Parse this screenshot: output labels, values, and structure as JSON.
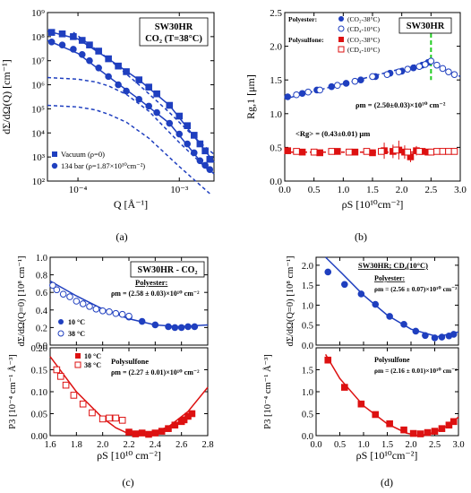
{
  "chart_data": [
    {
      "id": "a",
      "panel_label": "(a)",
      "type": "scatter",
      "title_box": [
        "SW30HR",
        "CO₂ (T=38°C)"
      ],
      "xlabel": "Q [Å⁻¹]",
      "ylabel": "dΣ/dΩ(Q) [cm⁻¹]",
      "xscale": "log",
      "yscale": "log",
      "xlim": [
        5e-05,
        0.0022
      ],
      "ylim": [
        100,
        1000000000
      ],
      "xticks": [
        {
          "v": 0.0001,
          "label": "10⁻⁴"
        },
        {
          "v": 0.001,
          "label": "10⁻³"
        }
      ],
      "yticks": [
        {
          "v": 100,
          "label": "10²"
        },
        {
          "v": 1000,
          "label": "10³"
        },
        {
          "v": 10000,
          "label": "10⁴"
        },
        {
          "v": 100000,
          "label": "10⁵"
        },
        {
          "v": 1000000,
          "label": "10⁶"
        },
        {
          "v": 10000000,
          "label": "10⁷"
        },
        {
          "v": 100000000,
          "label": "10⁸"
        },
        {
          "v": 1000000000,
          "label": "10⁹"
        }
      ],
      "legend": [
        {
          "marker": "square",
          "label": "Vacuum (ρ=0)"
        },
        {
          "marker": "circle",
          "label": "134 bar (ρ=1.87×10¹⁰cm⁻²)"
        }
      ],
      "series": [
        {
          "name": "Vacuum (ρ=0)",
          "marker": "square",
          "color": "#1f3fbf",
          "x": [
            5.5e-05,
            7e-05,
            9e-05,
            0.00011,
            0.00013,
            0.00016,
            0.0002,
            0.00025,
            0.0003,
            0.0004,
            0.0005,
            0.0006,
            0.0008,
            0.001,
            0.0012,
            0.0014,
            0.0016,
            0.0018,
            0.002
          ],
          "y": [
            150000000,
            130000000,
            100000000,
            70000000,
            45000000,
            25000000,
            12000000,
            6000000,
            3500000,
            1600000,
            800000,
            420000,
            140000,
            50000,
            20000,
            8000,
            3500,
            1800,
            800
          ]
        },
        {
          "name": "134 bar (ρ=1.87×10¹⁰cm⁻²)",
          "marker": "circle",
          "color": "#1f3fbf",
          "x": [
            5.5e-05,
            7e-05,
            9e-05,
            0.00011,
            0.00013,
            0.00016,
            0.0002,
            0.00025,
            0.0003,
            0.0004,
            0.0005,
            0.0006,
            0.0008,
            0.001,
            0.0012,
            0.0014,
            0.0016,
            0.0018,
            0.002
          ],
          "y": [
            60000000,
            45000000,
            30000000,
            18000000,
            10000000,
            5000000,
            2200000,
            1000000,
            550000,
            250000,
            130000,
            70000,
            25000,
            9000,
            3500,
            1500,
            700,
            450,
            300
          ]
        }
      ],
      "fits": [
        {
          "style": "solid",
          "x": [
            5e-05,
            0.0001,
            0.0002,
            0.0004,
            0.0008,
            0.0016,
            0.0022
          ],
          "y": [
            170000000,
            80000000,
            12000000,
            1600000,
            140000,
            3500,
            600
          ]
        },
        {
          "style": "solid",
          "x": [
            5e-05,
            0.0001,
            0.0002,
            0.0004,
            0.0008,
            0.0016,
            0.0022
          ],
          "y": [
            70000000,
            20000000,
            2200000,
            250000,
            25000,
            700,
            200
          ]
        },
        {
          "style": "dashed",
          "x": [
            5e-05,
            0.0001,
            0.00015,
            0.0002,
            0.0003,
            0.0005,
            0.001,
            0.002
          ],
          "y": [
            2000000,
            1700000,
            1300000,
            900000,
            400000,
            80000,
            4000,
            250
          ]
        },
        {
          "style": "dashed",
          "x": [
            5e-05,
            0.0001,
            0.00015,
            0.0002,
            0.0003,
            0.0005,
            0.001,
            0.002
          ],
          "y": [
            140000,
            120000,
            90000,
            60000,
            28000,
            6000,
            400,
            30
          ]
        },
        {
          "style": "dashed",
          "x": [
            9e-05,
            0.0002,
            0.0004,
            0.0008,
            0.0016,
            0.0022
          ],
          "y": [
            150000000,
            12000000,
            1000000,
            70000,
            4000,
            1300
          ]
        }
      ]
    },
    {
      "id": "b",
      "panel_label": "(b)",
      "type": "scatter",
      "title_box": [
        "SW30HR"
      ],
      "xlabel": "ρS [10¹⁰cm⁻²]",
      "ylabel": "Rg,1 [μm]",
      "xlim": [
        0,
        3.0
      ],
      "ylim": [
        0,
        2.5
      ],
      "xticks": [
        0.0,
        0.5,
        1.0,
        1.5,
        2.0,
        2.5,
        3.0
      ],
      "yticks": [
        0.0,
        0.5,
        1.0,
        1.5,
        2.0,
        2.5
      ],
      "legend_groups": [
        {
          "title": "Polyester:",
          "items": [
            {
              "marker": "circle-filled",
              "label": "(CO₂-38°C)"
            },
            {
              "marker": "circle-open",
              "label": "(CD₄-10°C)"
            }
          ]
        },
        {
          "title": "Polysulfone:",
          "items": [
            {
              "marker": "square-filled",
              "label": "(CO₂-38°C)"
            },
            {
              "marker": "square-open",
              "label": "(CD₄-10°C)"
            }
          ]
        }
      ],
      "annotations": [
        "ρm = (2.50±0.03)×10¹⁰ cm⁻²",
        "<Rg> = (0.43±0.01) μm"
      ],
      "vline_x": 2.5,
      "series": [
        {
          "name": "Polyester (CO₂-38°C)",
          "marker": "circle-filled",
          "color": "#1f3fbf",
          "x": [
            0.05,
            0.3,
            0.55,
            0.8,
            1.05,
            1.3,
            1.55,
            1.8,
            2.0,
            2.2,
            2.35,
            2.45
          ],
          "y": [
            1.25,
            1.3,
            1.35,
            1.4,
            1.45,
            1.5,
            1.55,
            1.6,
            1.63,
            1.68,
            1.72,
            1.76
          ]
        },
        {
          "name": "Polyester (CD₄-10°C)",
          "marker": "circle-open",
          "color": "#1f3fbf",
          "x": [
            0.2,
            0.4,
            0.6,
            0.9,
            1.2,
            1.5,
            1.75,
            1.95,
            2.1,
            2.3,
            2.4,
            2.5,
            2.6,
            2.7,
            2.8,
            2.9
          ],
          "y": [
            1.28,
            1.32,
            1.35,
            1.42,
            1.48,
            1.55,
            1.58,
            1.62,
            1.66,
            1.7,
            1.73,
            1.78,
            1.72,
            1.67,
            1.62,
            1.58
          ]
        },
        {
          "name": "Polysulfone (CO₂-38°C)",
          "marker": "square-filled",
          "color": "#dd1111",
          "x": [
            0.05,
            0.3,
            0.6,
            0.9,
            1.2,
            1.5,
            1.7,
            1.85,
            1.95,
            2.05,
            2.15,
            2.25,
            2.35,
            2.45
          ],
          "y": [
            0.45,
            0.43,
            0.42,
            0.44,
            0.43,
            0.42,
            0.45,
            0.44,
            0.46,
            0.43,
            0.36,
            0.45,
            0.44,
            0.43
          ]
        },
        {
          "name": "Polysulfone (CD₄-10°C)",
          "marker": "square-open",
          "color": "#dd1111",
          "x": [
            0.2,
            0.5,
            0.8,
            1.1,
            1.4,
            1.65,
            1.9,
            2.1,
            2.3,
            2.5,
            2.6,
            2.7,
            2.8,
            2.9
          ],
          "y": [
            0.44,
            0.43,
            0.44,
            0.43,
            0.44,
            0.44,
            0.46,
            0.43,
            0.44,
            0.43,
            0.44,
            0.44,
            0.44,
            0.44
          ]
        }
      ],
      "errorbars": [
        {
          "x": 1.7,
          "y": 0.45,
          "err": 0.12
        },
        {
          "x": 1.85,
          "y": 0.44,
          "err": 0.1
        },
        {
          "x": 1.95,
          "y": 0.46,
          "err": 0.14
        },
        {
          "x": 2.05,
          "y": 0.43,
          "err": 0.1
        },
        {
          "x": 2.15,
          "y": 0.36,
          "err": 0.08
        },
        {
          "x": 2.25,
          "y": 0.45,
          "err": 0.07
        }
      ],
      "fits": [
        {
          "style": "dashed",
          "color": "#1f3fbf",
          "x": [
            0.0,
            2.5
          ],
          "y": [
            1.22,
            1.78
          ]
        },
        {
          "style": "dashed",
          "color": "#1f3fbf",
          "x": [
            2.5,
            3.0
          ],
          "y": [
            1.78,
            1.55
          ]
        },
        {
          "style": "dashed",
          "color": "#dd1111",
          "x": [
            0.0,
            3.0
          ],
          "y": [
            0.43,
            0.43
          ]
        }
      ]
    },
    {
      "id": "c",
      "panel_label": "(c)",
      "type": "scatter",
      "title_box": [
        "SW30HR - CO₂"
      ],
      "xlabel": "ρS [10¹⁰ cm⁻²]",
      "xlim": [
        1.6,
        2.8
      ],
      "xticks": [
        1.6,
        1.8,
        2.0,
        2.2,
        2.4,
        2.6,
        2.8
      ],
      "top": {
        "ylabel": "dΣ/dΩ(Q=0) [10⁸ cm⁻¹]",
        "ylim": [
          0,
          1.0
        ],
        "yticks": [
          0.0,
          0.2,
          0.4,
          0.6,
          0.8,
          1.0
        ],
        "texts": [
          "Polyester:",
          "ρm = (2.58 ± 0.03)×10¹⁰ cm⁻²"
        ],
        "legend": [
          {
            "marker": "circle-filled",
            "label": "10 °C"
          },
          {
            "marker": "circle-open",
            "label": "38 °C"
          }
        ],
        "series": [
          {
            "name": "10 °C",
            "marker": "circle-filled",
            "color": "#1f3fbf",
            "x": [
              2.2,
              2.3,
              2.4,
              2.5,
              2.55,
              2.6,
              2.65,
              2.7
            ],
            "y": [
              0.32,
              0.27,
              0.23,
              0.21,
              0.2,
              0.2,
              0.21,
              0.21
            ]
          },
          {
            "name": "38 °C",
            "marker": "circle-open",
            "color": "#1f3fbf",
            "x": [
              1.62,
              1.65,
              1.7,
              1.75,
              1.8,
              1.85,
              1.9,
              1.95,
              2.0,
              2.05,
              2.1,
              2.15,
              2.2
            ],
            "y": [
              0.68,
              0.63,
              0.58,
              0.55,
              0.5,
              0.47,
              0.44,
              0.41,
              0.39,
              0.38,
              0.36,
              0.35,
              0.33
            ]
          }
        ],
        "fit": {
          "color": "#1f3fbf",
          "x": [
            1.6,
            1.8,
            2.0,
            2.2,
            2.4,
            2.58,
            2.8
          ],
          "y": [
            0.73,
            0.56,
            0.41,
            0.3,
            0.23,
            0.21,
            0.23
          ]
        }
      },
      "bottom": {
        "ylabel": "P3 [10⁻⁴ cm⁻¹ Å⁻³]",
        "ylim": [
          0,
          0.2
        ],
        "yticks": [
          0.0,
          0.05,
          0.1,
          0.15,
          0.2
        ],
        "texts": [
          "Polysulfone",
          "ρm = (2.27 ± 0.01)×10¹⁰ cm⁻²"
        ],
        "legend": [
          {
            "marker": "square-filled",
            "label": "10 °C"
          },
          {
            "marker": "square-open",
            "label": "38 °C"
          }
        ],
        "series": [
          {
            "name": "10 °C",
            "marker": "square-filled",
            "color": "#dd1111",
            "x": [
              2.2,
              2.25,
              2.3,
              2.35,
              2.4,
              2.45,
              2.5,
              2.55,
              2.6,
              2.62,
              2.65,
              2.68
            ],
            "y": [
              0.008,
              0.004,
              0.006,
              0.003,
              0.006,
              0.01,
              0.016,
              0.024,
              0.032,
              0.036,
              0.044,
              0.05
            ]
          },
          {
            "name": "38 °C",
            "marker": "square-open",
            "color": "#dd1111",
            "x": [
              1.65,
              1.68,
              1.72,
              1.78,
              1.85,
              1.92,
              2.0,
              2.05,
              2.1,
              2.15
            ],
            "y": [
              0.15,
              0.135,
              0.115,
              0.092,
              0.072,
              0.052,
              0.038,
              0.04,
              0.04,
              0.035
            ]
          }
        ],
        "fit": {
          "color": "#dd1111",
          "x": [
            1.6,
            1.8,
            2.0,
            2.1,
            2.2,
            2.27,
            2.35,
            2.5,
            2.65,
            2.8
          ],
          "y": [
            0.18,
            0.1,
            0.04,
            0.018,
            0.004,
            0.0,
            0.004,
            0.02,
            0.055,
            0.11
          ]
        }
      }
    },
    {
      "id": "d",
      "panel_label": "(d)",
      "type": "scatter",
      "title_box": [
        "SW30HR; CD₄(10°C)"
      ],
      "xlabel": "ρS [10¹⁰cm⁻²]",
      "xlim": [
        0,
        3.0
      ],
      "xticks": [
        0.0,
        0.5,
        1.0,
        1.5,
        2.0,
        2.5,
        3.0
      ],
      "top": {
        "ylabel": "dΣ/dΩ(Q=0) [10⁸ cm⁻¹]",
        "ylim": [
          0,
          2.2
        ],
        "yticks": [
          0.0,
          0.5,
          1.0,
          1.5,
          2.0
        ],
        "texts": [
          "Polyester:",
          "ρm = (2.56 ± 0.07)×10¹⁰ cm⁻²"
        ],
        "series": [
          {
            "name": "Polyester",
            "marker": "circle-filled",
            "color": "#1f3fbf",
            "x": [
              0.25,
              0.6,
              0.95,
              1.25,
              1.55,
              1.85,
              2.1,
              2.3,
              2.5,
              2.65,
              2.8,
              2.9
            ],
            "y": [
              1.83,
              1.52,
              1.28,
              1.02,
              0.72,
              0.52,
              0.35,
              0.24,
              0.18,
              0.2,
              0.23,
              0.27
            ]
          }
        ],
        "fit": {
          "color": "#1f3fbf",
          "x": [
            0.2,
            0.5,
            1.0,
            1.5,
            2.0,
            2.56,
            3.0
          ],
          "y": [
            2.25,
            1.85,
            1.25,
            0.75,
            0.4,
            0.21,
            0.33
          ]
        }
      },
      "bottom": {
        "ylabel": "P3 [10⁻⁴ cm⁻¹ Å⁻³]",
        "ylim": [
          0,
          2.0
        ],
        "yticks": [
          0.0,
          0.5,
          1.0,
          1.5
        ],
        "texts": [
          "Polysulfone",
          "ρm = (2.16 ± 0.01)×10¹⁰ cm⁻²"
        ],
        "series": [
          {
            "name": "Polysulfone",
            "marker": "square-filled",
            "color": "#dd1111",
            "x": [
              0.25,
              0.6,
              0.95,
              1.25,
              1.55,
              1.85,
              2.05,
              2.2,
              2.35,
              2.5,
              2.65,
              2.8,
              2.9
            ],
            "y": [
              1.72,
              1.1,
              0.72,
              0.48,
              0.27,
              0.13,
              0.05,
              0.04,
              0.07,
              0.1,
              0.16,
              0.24,
              0.32
            ]
          }
        ],
        "fit": {
          "color": "#dd1111",
          "x": [
            0.2,
            0.5,
            1.0,
            1.5,
            1.9,
            2.16,
            2.4,
            2.7,
            3.0
          ],
          "y": [
            1.85,
            1.3,
            0.68,
            0.27,
            0.06,
            0.0,
            0.04,
            0.18,
            0.42
          ]
        }
      }
    }
  ]
}
